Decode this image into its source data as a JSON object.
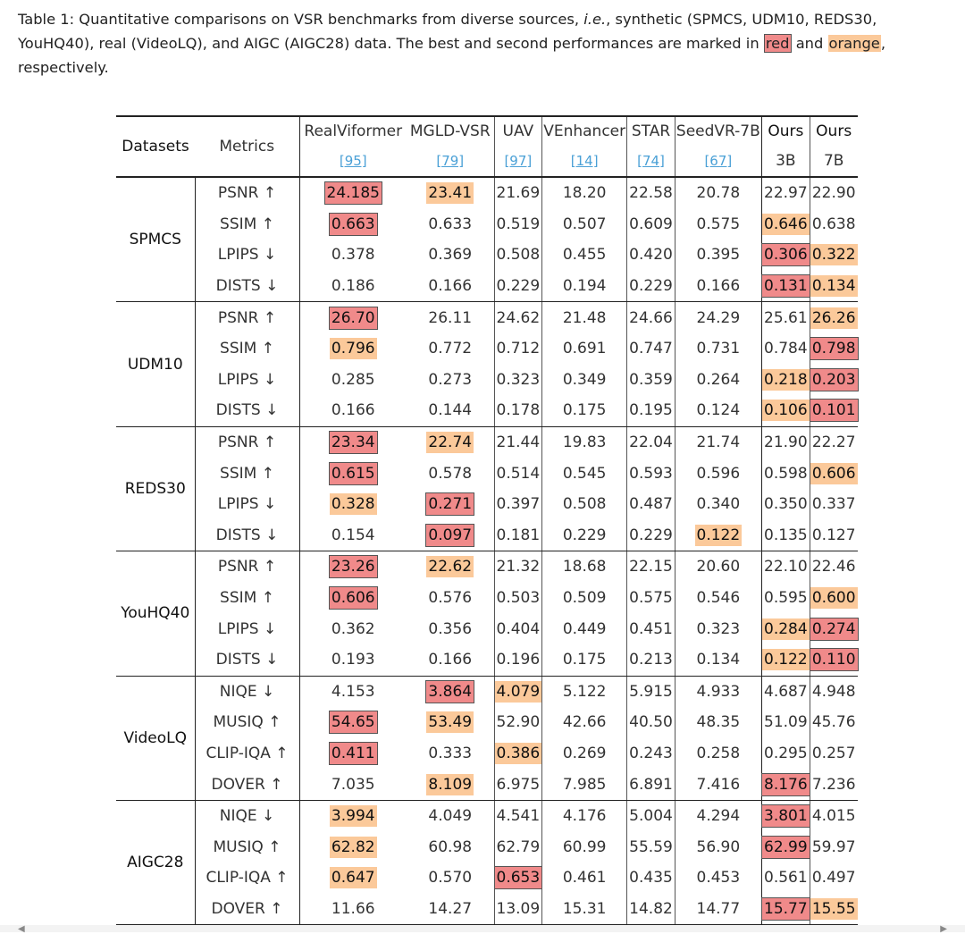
{
  "caption": {
    "part1": "Table 1: Quantitative comparisons on VSR benchmarks from diverse sources, ",
    "ie": "i.e.",
    "part2": ", synthetic (SPMCS, UDM10, REDS30, YouHQ40), real (VideoLQ), and AIGC (AIGC28) data. The best and second performances are marked in ",
    "red_word": "red",
    "part3": " and ",
    "orange_word": "orange",
    "part4": ", respectively."
  },
  "headers": {
    "datasets": "Datasets",
    "metrics": "Metrics",
    "methods": [
      {
        "name": "RealViformer",
        "ref": "[95]",
        "bold": false
      },
      {
        "name": "MGLD-VSR",
        "ref": "[79]",
        "bold": false
      },
      {
        "name": "UAV",
        "ref": "[97]",
        "bold": false
      },
      {
        "name": "VEnhancer",
        "ref": "[14]",
        "bold": false
      },
      {
        "name": "STAR",
        "ref": "[74]",
        "bold": false
      },
      {
        "name": "SeedVR-7B",
        "ref": "[67]",
        "bold": false
      },
      {
        "name": "Ours",
        "ref": "3B",
        "bold": true
      },
      {
        "name": "Ours",
        "ref": "7B",
        "bold": true
      }
    ]
  },
  "groups": [
    {
      "dataset": "SPMCS",
      "rows": [
        {
          "metric": "PSNR ↑",
          "values": [
            "24.185",
            "23.41",
            "21.69",
            "18.20",
            "22.58",
            "20.78",
            "22.97",
            "22.90"
          ],
          "marks": [
            "red",
            "orange",
            "",
            "",
            "",
            "",
            "",
            ""
          ]
        },
        {
          "metric": "SSIM ↑",
          "values": [
            "0.663",
            "0.633",
            "0.519",
            "0.507",
            "0.609",
            "0.575",
            "0.646",
            "0.638"
          ],
          "marks": [
            "red",
            "",
            "",
            "",
            "",
            "",
            "orange",
            ""
          ]
        },
        {
          "metric": "LPIPS ↓",
          "values": [
            "0.378",
            "0.369",
            "0.508",
            "0.455",
            "0.420",
            "0.395",
            "0.306",
            "0.322"
          ],
          "marks": [
            "",
            "",
            "",
            "",
            "",
            "",
            "red",
            "orange"
          ]
        },
        {
          "metric": "DISTS ↓",
          "values": [
            "0.186",
            "0.166",
            "0.229",
            "0.194",
            "0.229",
            "0.166",
            "0.131",
            "0.134"
          ],
          "marks": [
            "",
            "",
            "",
            "",
            "",
            "",
            "red",
            "orange"
          ]
        }
      ]
    },
    {
      "dataset": "UDM10",
      "rows": [
        {
          "metric": "PSNR ↑",
          "values": [
            "26.70",
            "26.11",
            "24.62",
            "21.48",
            "24.66",
            "24.29",
            "25.61",
            "26.26"
          ],
          "marks": [
            "red",
            "",
            "",
            "",
            "",
            "",
            "",
            "orange"
          ]
        },
        {
          "metric": "SSIM ↑",
          "values": [
            "0.796",
            "0.772",
            "0.712",
            "0.691",
            "0.747",
            "0.731",
            "0.784",
            "0.798"
          ],
          "marks": [
            "orange",
            "",
            "",
            "",
            "",
            "",
            "",
            "red"
          ]
        },
        {
          "metric": "LPIPS ↓",
          "values": [
            "0.285",
            "0.273",
            "0.323",
            "0.349",
            "0.359",
            "0.264",
            "0.218",
            "0.203"
          ],
          "marks": [
            "",
            "",
            "",
            "",
            "",
            "",
            "orange",
            "red"
          ]
        },
        {
          "metric": "DISTS ↓",
          "values": [
            "0.166",
            "0.144",
            "0.178",
            "0.175",
            "0.195",
            "0.124",
            "0.106",
            "0.101"
          ],
          "marks": [
            "",
            "",
            "",
            "",
            "",
            "",
            "orange",
            "red"
          ]
        }
      ]
    },
    {
      "dataset": "REDS30",
      "rows": [
        {
          "metric": "PSNR ↑",
          "values": [
            "23.34",
            "22.74",
            "21.44",
            "19.83",
            "22.04",
            "21.74",
            "21.90",
            "22.27"
          ],
          "marks": [
            "red",
            "orange",
            "",
            "",
            "",
            "",
            "",
            ""
          ]
        },
        {
          "metric": "SSIM ↑",
          "values": [
            "0.615",
            "0.578",
            "0.514",
            "0.545",
            "0.593",
            "0.596",
            "0.598",
            "0.606"
          ],
          "marks": [
            "red",
            "",
            "",
            "",
            "",
            "",
            "",
            "orange"
          ]
        },
        {
          "metric": "LPIPS ↓",
          "values": [
            "0.328",
            "0.271",
            "0.397",
            "0.508",
            "0.487",
            "0.340",
            "0.350",
            "0.337"
          ],
          "marks": [
            "orange",
            "red",
            "",
            "",
            "",
            "",
            "",
            ""
          ]
        },
        {
          "metric": "DISTS ↓",
          "values": [
            "0.154",
            "0.097",
            "0.181",
            "0.229",
            "0.229",
            "0.122",
            "0.135",
            "0.127"
          ],
          "marks": [
            "",
            "red",
            "",
            "",
            "",
            "orange",
            "",
            ""
          ]
        }
      ]
    },
    {
      "dataset": "YouHQ40",
      "rows": [
        {
          "metric": "PSNR ↑",
          "values": [
            "23.26",
            "22.62",
            "21.32",
            "18.68",
            "22.15",
            "20.60",
            "22.10",
            "22.46"
          ],
          "marks": [
            "red",
            "orange",
            "",
            "",
            "",
            "",
            "",
            ""
          ]
        },
        {
          "metric": "SSIM ↑",
          "values": [
            "0.606",
            "0.576",
            "0.503",
            "0.509",
            "0.575",
            "0.546",
            "0.595",
            "0.600"
          ],
          "marks": [
            "red",
            "",
            "",
            "",
            "",
            "",
            "",
            "orange"
          ]
        },
        {
          "metric": "LPIPS ↓",
          "values": [
            "0.362",
            "0.356",
            "0.404",
            "0.449",
            "0.451",
            "0.323",
            "0.284",
            "0.274"
          ],
          "marks": [
            "",
            "",
            "",
            "",
            "",
            "",
            "orange",
            "red"
          ]
        },
        {
          "metric": "DISTS ↓",
          "values": [
            "0.193",
            "0.166",
            "0.196",
            "0.175",
            "0.213",
            "0.134",
            "0.122",
            "0.110"
          ],
          "marks": [
            "",
            "",
            "",
            "",
            "",
            "",
            "orange",
            "red"
          ]
        }
      ]
    },
    {
      "dataset": "VideoLQ",
      "rows": [
        {
          "metric": "NIQE ↓",
          "values": [
            "4.153",
            "3.864",
            "4.079",
            "5.122",
            "5.915",
            "4.933",
            "4.687",
            "4.948"
          ],
          "marks": [
            "",
            "red",
            "orange",
            "",
            "",
            "",
            "",
            ""
          ]
        },
        {
          "metric": "MUSIQ ↑",
          "values": [
            "54.65",
            "53.49",
            "52.90",
            "42.66",
            "40.50",
            "48.35",
            "51.09",
            "45.76"
          ],
          "marks": [
            "red",
            "orange",
            "",
            "",
            "",
            "",
            "",
            ""
          ]
        },
        {
          "metric": "CLIP-IQA ↑",
          "values": [
            "0.411",
            "0.333",
            "0.386",
            "0.269",
            "0.243",
            "0.258",
            "0.295",
            "0.257"
          ],
          "marks": [
            "red",
            "",
            "orange",
            "",
            "",
            "",
            "",
            ""
          ]
        },
        {
          "metric": "DOVER ↑",
          "values": [
            "7.035",
            "8.109",
            "6.975",
            "7.985",
            "6.891",
            "7.416",
            "8.176",
            "7.236"
          ],
          "marks": [
            "",
            "orange",
            "",
            "",
            "",
            "",
            "red",
            ""
          ]
        }
      ]
    },
    {
      "dataset": "AIGC28",
      "rows": [
        {
          "metric": "NIQE ↓",
          "values": [
            "3.994",
            "4.049",
            "4.541",
            "4.176",
            "5.004",
            "4.294",
            "3.801",
            "4.015"
          ],
          "marks": [
            "orange",
            "",
            "",
            "",
            "",
            "",
            "red",
            ""
          ]
        },
        {
          "metric": "MUSIQ ↑",
          "values": [
            "62.82",
            "60.98",
            "62.79",
            "60.99",
            "55.59",
            "56.90",
            "62.99",
            "59.97"
          ],
          "marks": [
            "orange",
            "",
            "",
            "",
            "",
            "",
            "red",
            ""
          ]
        },
        {
          "metric": "CLIP-IQA ↑",
          "values": [
            "0.647",
            "0.570",
            "0.653",
            "0.461",
            "0.435",
            "0.453",
            "0.561",
            "0.497"
          ],
          "marks": [
            "orange",
            "",
            "red",
            "",
            "",
            "",
            "",
            ""
          ]
        },
        {
          "metric": "DOVER ↑",
          "values": [
            "11.66",
            "14.27",
            "13.09",
            "15.31",
            "14.82",
            "14.77",
            "15.77",
            "15.55"
          ],
          "marks": [
            "",
            "",
            "",
            "",
            "",
            "",
            "red",
            "orange"
          ]
        }
      ]
    }
  ],
  "colors": {
    "red": "#f08a8a",
    "orange": "#fbc99a",
    "link": "#4aa0d6"
  }
}
